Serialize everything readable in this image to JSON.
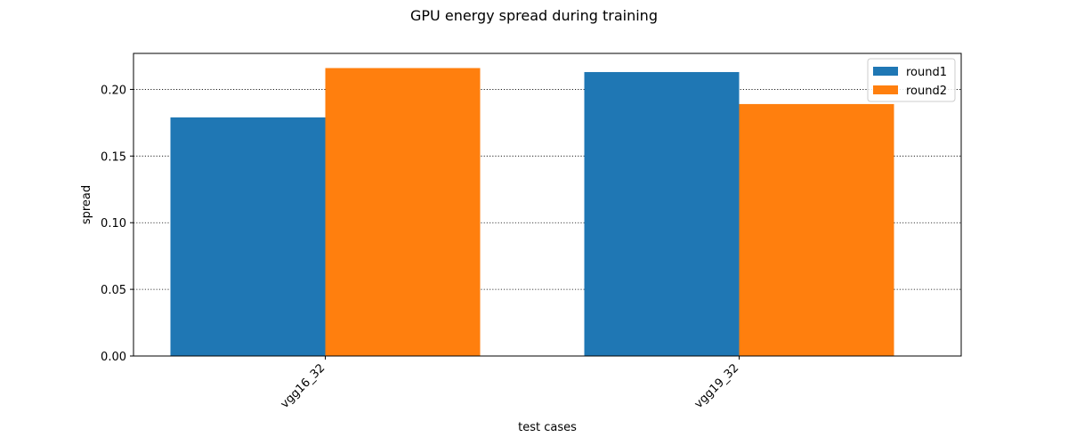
{
  "chart_data": {
    "type": "bar",
    "title": "GPU energy spread during training",
    "xlabel": "test cases",
    "ylabel": "spread",
    "categories": [
      "vgg16_32",
      "vgg19_32"
    ],
    "series": [
      {
        "name": "round1",
        "values": [
          0.179,
          0.213
        ],
        "color": "#1f77b4"
      },
      {
        "name": "round2",
        "values": [
          0.216,
          0.189
        ],
        "color": "#ff7f0e"
      }
    ],
    "ylim": [
      0,
      0.227
    ],
    "yticks": [
      0.0,
      0.05,
      0.1,
      0.15,
      0.2
    ],
    "ytick_labels": [
      "0.00",
      "0.05",
      "0.10",
      "0.15",
      "0.20"
    ],
    "grid": {
      "axis": "y",
      "style": "dotted",
      "color": "#000000"
    },
    "legend": "top-right"
  }
}
